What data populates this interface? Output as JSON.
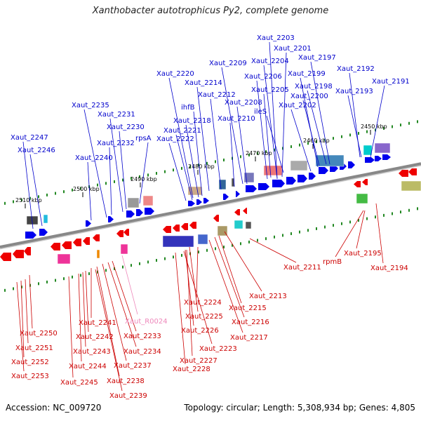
{
  "title": "Xanthobacter autotrophicus Py2, complete genome",
  "accession": "Accession: NC_009720",
  "summary": "Topology: circular; Length: 5,308,934 bp; Genes: 4,805",
  "colors": {
    "forward": "#0000ee",
    "reverse": "#ee0000",
    "forward_label": "#0000cc",
    "reverse_label": "#cc0000",
    "rna_label": "#ee88bb",
    "backbone": "#888888",
    "ticks": "#228822"
  },
  "scale_labels": [
    {
      "text": "2450 kbp"
    },
    {
      "text": "2460 kbp"
    },
    {
      "text": "2470 kbp"
    },
    {
      "text": "2480 kbp"
    },
    {
      "text": "2490 kbp"
    },
    {
      "text": "2500 kbp"
    },
    {
      "text": "2510 kbp"
    }
  ],
  "forward_genes": [
    {
      "name": "Xaut_2203"
    },
    {
      "name": "Xaut_2201"
    },
    {
      "name": "Xaut_2204"
    },
    {
      "name": "Xaut_2197"
    },
    {
      "name": "Xaut_2209"
    },
    {
      "name": "Xaut_2199"
    },
    {
      "name": "Xaut_2192"
    },
    {
      "name": "Xaut_2206"
    },
    {
      "name": "Xaut_2220"
    },
    {
      "name": "Xaut_2198"
    },
    {
      "name": "Xaut_2191"
    },
    {
      "name": "Xaut_2214"
    },
    {
      "name": "Xaut_2205"
    },
    {
      "name": "Xaut_2193"
    },
    {
      "name": "Xaut_2200"
    },
    {
      "name": "Xaut_2212"
    },
    {
      "name": "Xaut_2208"
    },
    {
      "name": "Xaut_2202"
    },
    {
      "name": "Xaut_2235"
    },
    {
      "name": "ihfB"
    },
    {
      "name": "ileS"
    },
    {
      "name": "Xaut_2231"
    },
    {
      "name": "Xaut_2218"
    },
    {
      "name": "Xaut_2210"
    },
    {
      "name": "Xaut_2230"
    },
    {
      "name": "Xaut_2221"
    },
    {
      "name": "rpsA"
    },
    {
      "name": "Xaut_2247"
    },
    {
      "name": "Xaut_2222"
    },
    {
      "name": "Xaut_2232"
    },
    {
      "name": "Xaut_2246"
    },
    {
      "name": "Xaut_2240"
    }
  ],
  "reverse_genes": [
    {
      "name": "rpmB"
    },
    {
      "name": "Xaut_2195"
    },
    {
      "name": "Xaut_2211"
    },
    {
      "name": "Xaut_2194"
    },
    {
      "name": "Xaut_2213"
    },
    {
      "name": "Xaut_2224"
    },
    {
      "name": "Xaut_2215"
    },
    {
      "name": "Xaut_2225"
    },
    {
      "name": "Xaut_2216"
    },
    {
      "name": "Xaut_2241"
    },
    {
      "name": "Xaut_2226"
    },
    {
      "name": "Xaut_2250"
    },
    {
      "name": "Xaut_2233"
    },
    {
      "name": "Xaut_2242"
    },
    {
      "name": "Xaut_2217"
    },
    {
      "name": "Xaut_2251"
    },
    {
      "name": "Xaut_2243"
    },
    {
      "name": "Xaut_2234"
    },
    {
      "name": "Xaut_2223"
    },
    {
      "name": "Xaut_2252"
    },
    {
      "name": "Xaut_2227"
    },
    {
      "name": "Xaut_2244"
    },
    {
      "name": "Xaut_2237"
    },
    {
      "name": "Xaut_2228"
    },
    {
      "name": "Xaut_2253"
    },
    {
      "name": "Xaut_2245"
    },
    {
      "name": "Xaut_2238"
    },
    {
      "name": "Xaut_2239"
    }
  ],
  "rna_genes": [
    {
      "name": "Xaut_R0024"
    }
  ]
}
